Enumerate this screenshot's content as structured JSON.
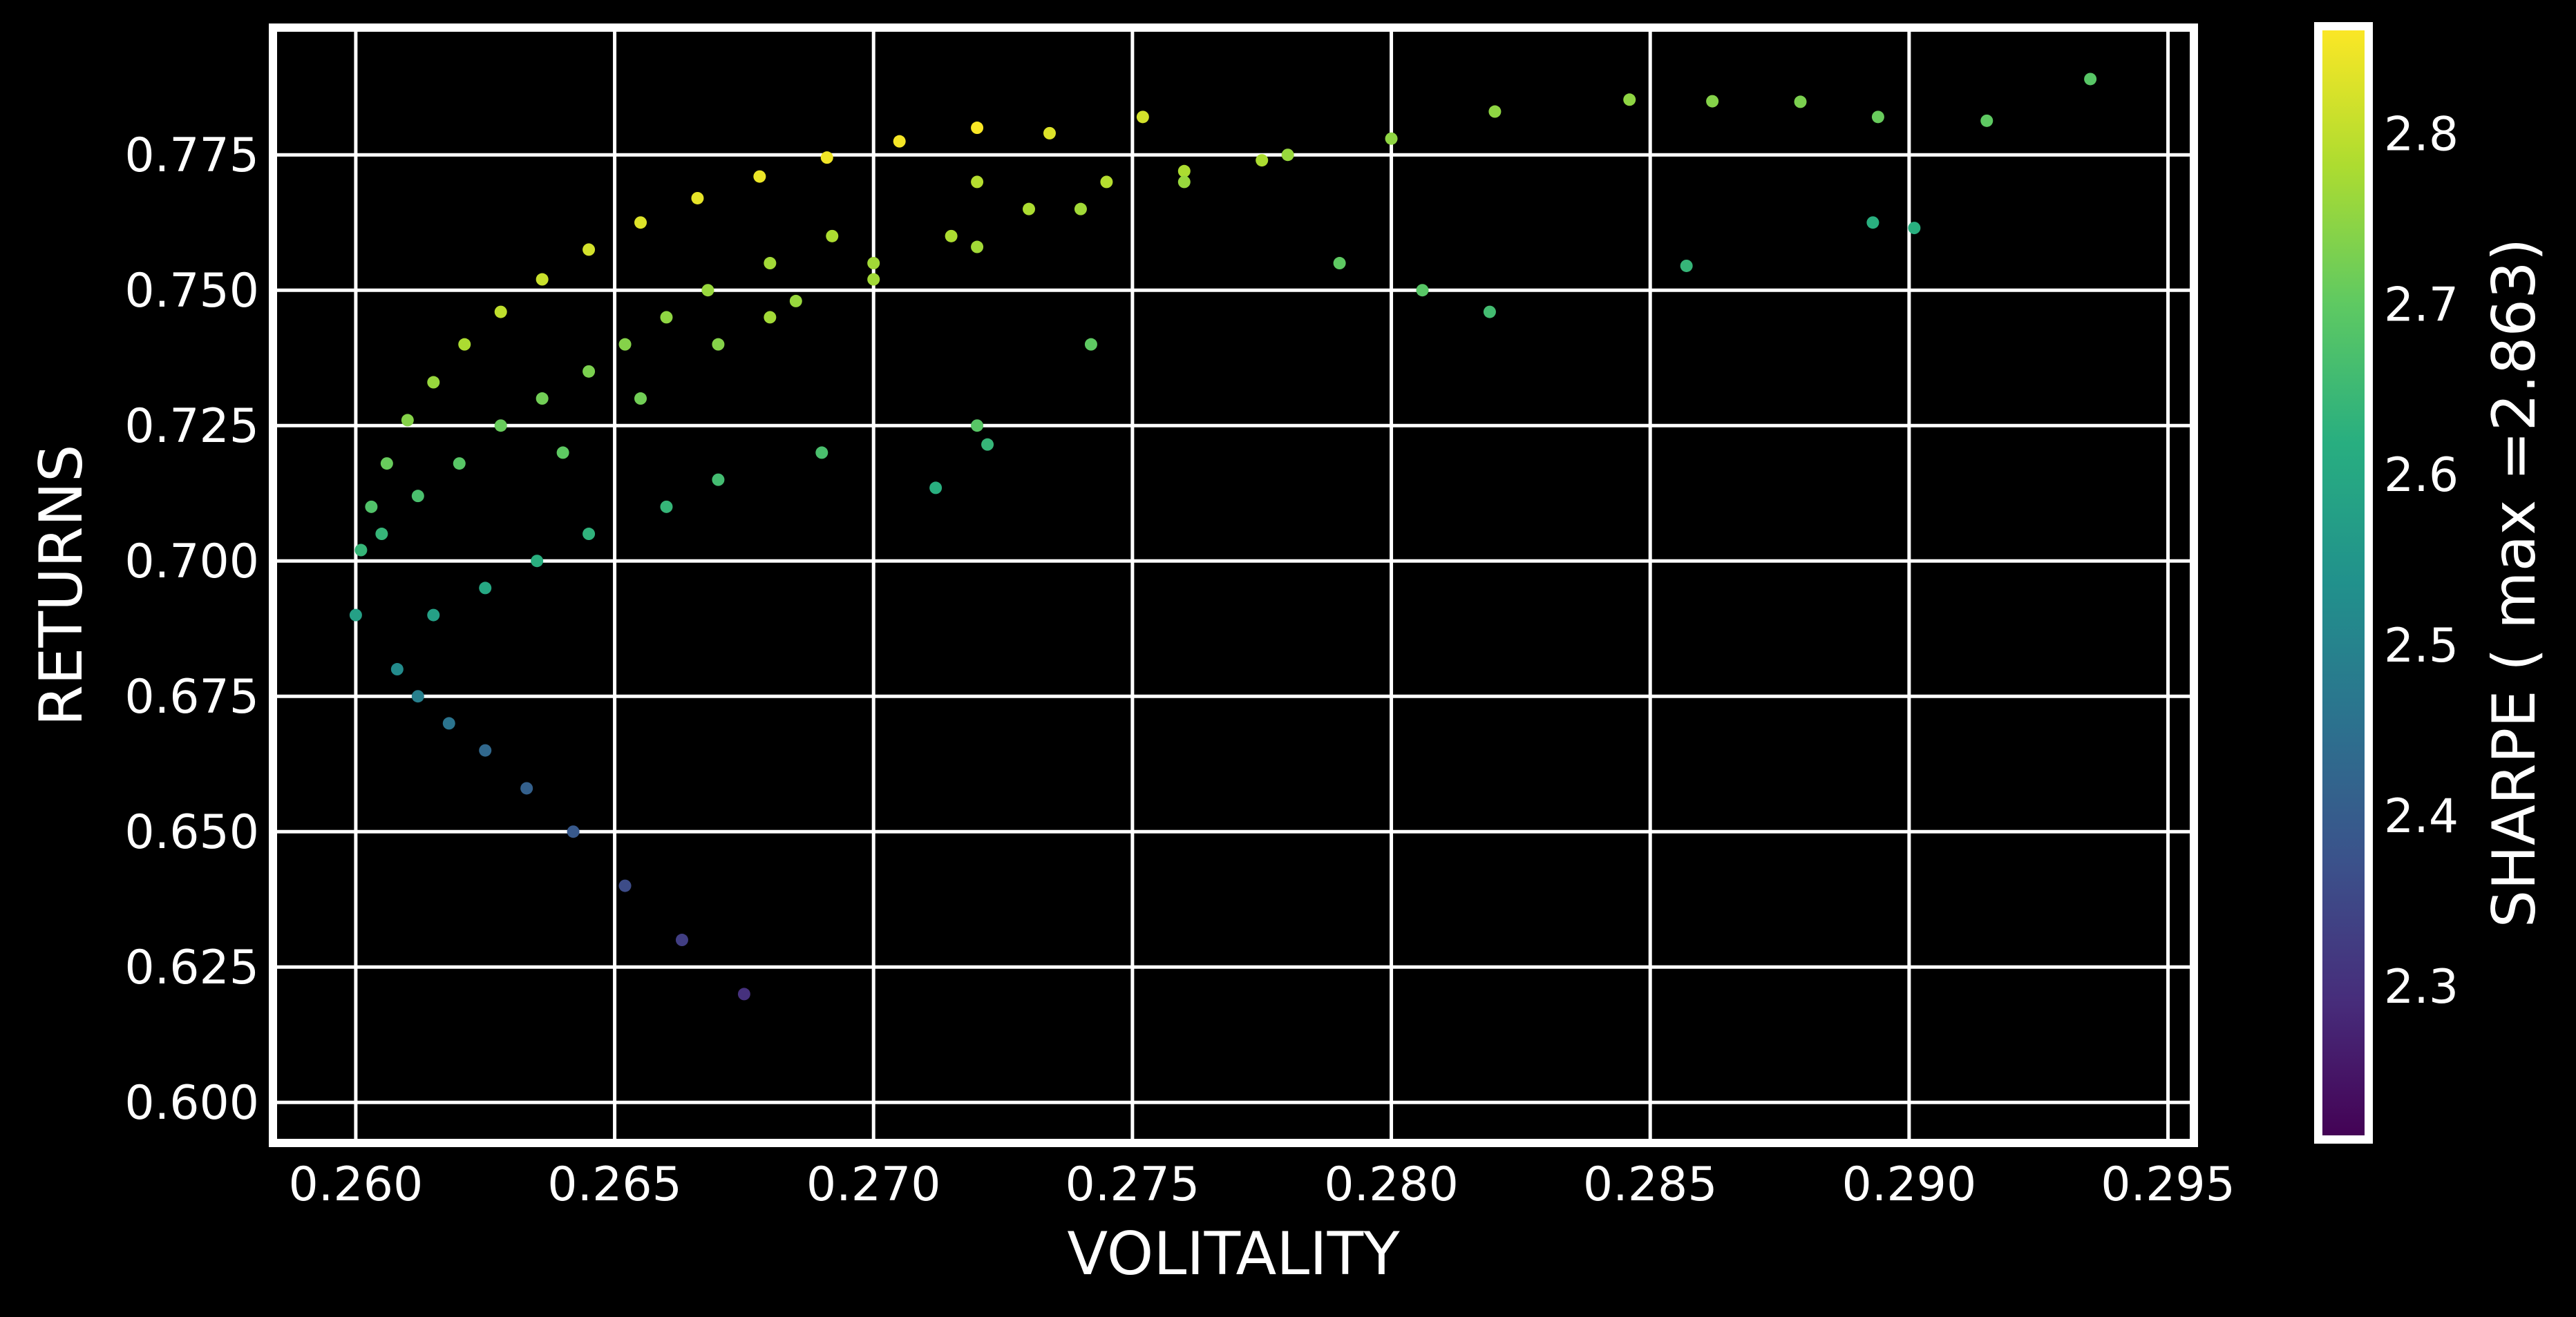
{
  "chart_data": {
    "type": "scatter",
    "xlabel": "VOLITALITY",
    "ylabel": "RETURNS",
    "xlim": [
      0.2584,
      0.2955
    ],
    "ylim": [
      0.5925,
      0.7985
    ],
    "xticks": [
      0.26,
      0.265,
      0.27,
      0.275,
      0.28,
      0.285,
      0.29,
      0.295
    ],
    "xtick_labels": [
      "0.260",
      "0.265",
      "0.270",
      "0.275",
      "0.280",
      "0.285",
      "0.290",
      "0.295"
    ],
    "yticks": [
      0.6,
      0.625,
      0.65,
      0.675,
      0.7,
      0.725,
      0.75,
      0.775
    ],
    "ytick_labels": [
      "0.600",
      "0.625",
      "0.650",
      "0.675",
      "0.700",
      "0.725",
      "0.750",
      "0.775"
    ],
    "grid": true,
    "background": "#000000",
    "grid_color": "#ffffff",
    "colormap": "viridis",
    "colorbar": {
      "label": "SHARPE ( max =2.863)",
      "min": 2.21,
      "max": 2.863,
      "ticks": [
        2.3,
        2.4,
        2.5,
        2.6,
        2.7,
        2.8
      ],
      "tick_labels": [
        "2.3",
        "2.4",
        "2.5",
        "2.6",
        "2.7",
        "2.8"
      ]
    },
    "series": [
      {
        "note_values": "approximate frontier-shaped cloud of portfolios colored by Sharpe ratio",
        "x": [
          0.26,
          0.2601,
          0.2603,
          0.2606,
          0.261,
          0.2615,
          0.2621,
          0.2628,
          0.2636,
          0.2645,
          0.2655,
          0.2666,
          0.2678,
          0.2691,
          0.2705,
          0.272,
          0.2608,
          0.2612,
          0.2618,
          0.2625,
          0.2633,
          0.2642,
          0.2652,
          0.2663,
          0.2675,
          0.2615,
          0.2625,
          0.2635,
          0.2645,
          0.266,
          0.267,
          0.269,
          0.272,
          0.2605,
          0.2612,
          0.262,
          0.2628,
          0.2636,
          0.2645,
          0.2652,
          0.266,
          0.2668,
          0.268,
          0.2692,
          0.272,
          0.264,
          0.2655,
          0.267,
          0.2685,
          0.27,
          0.2715,
          0.273,
          0.2745,
          0.276,
          0.2775,
          0.268,
          0.27,
          0.272,
          0.274,
          0.276,
          0.278,
          0.28,
          0.282,
          0.2846,
          0.2862,
          0.2879,
          0.2894,
          0.2915,
          0.2935,
          0.2734,
          0.2752,
          0.279,
          0.2806,
          0.2857,
          0.2819,
          0.2893,
          0.2901,
          0.2742,
          0.2722,
          0.2712
        ],
        "y": [
          0.69,
          0.702,
          0.71,
          0.718,
          0.726,
          0.733,
          0.74,
          0.746,
          0.752,
          0.7575,
          0.7625,
          0.767,
          0.771,
          0.7745,
          0.7775,
          0.78,
          0.68,
          0.675,
          0.67,
          0.665,
          0.658,
          0.65,
          0.64,
          0.63,
          0.62,
          0.69,
          0.695,
          0.7,
          0.705,
          0.71,
          0.715,
          0.72,
          0.725,
          0.705,
          0.712,
          0.718,
          0.725,
          0.73,
          0.735,
          0.74,
          0.745,
          0.75,
          0.755,
          0.76,
          0.77,
          0.72,
          0.73,
          0.74,
          0.748,
          0.755,
          0.76,
          0.765,
          0.77,
          0.772,
          0.774,
          0.745,
          0.752,
          0.758,
          0.765,
          0.77,
          0.775,
          0.778,
          0.783,
          0.7852,
          0.7849,
          0.7848,
          0.782,
          0.7813,
          0.789,
          0.779,
          0.782,
          0.755,
          0.75,
          0.7545,
          0.746,
          0.7625,
          0.7615,
          0.74,
          0.7215,
          0.7135
        ],
        "color_values": [
          2.58,
          2.64,
          2.68,
          2.71,
          2.74,
          2.76,
          2.78,
          2.8,
          2.81,
          2.82,
          2.83,
          2.84,
          2.845,
          2.85,
          2.855,
          2.86,
          2.52,
          2.49,
          2.46,
          2.43,
          2.41,
          2.39,
          2.36,
          2.33,
          2.3,
          2.58,
          2.6,
          2.62,
          2.63,
          2.64,
          2.66,
          2.67,
          2.69,
          2.64,
          2.67,
          2.69,
          2.71,
          2.72,
          2.73,
          2.74,
          2.75,
          2.76,
          2.77,
          2.78,
          2.79,
          2.7,
          2.72,
          2.74,
          2.76,
          2.77,
          2.78,
          2.78,
          2.79,
          2.78,
          2.78,
          2.77,
          2.77,
          2.77,
          2.77,
          2.76,
          2.76,
          2.75,
          2.75,
          2.75,
          2.74,
          2.73,
          2.71,
          2.7,
          2.69,
          2.83,
          2.82,
          2.7,
          2.69,
          2.64,
          2.66,
          2.62,
          2.62,
          2.7,
          2.64,
          2.62
        ]
      }
    ]
  }
}
